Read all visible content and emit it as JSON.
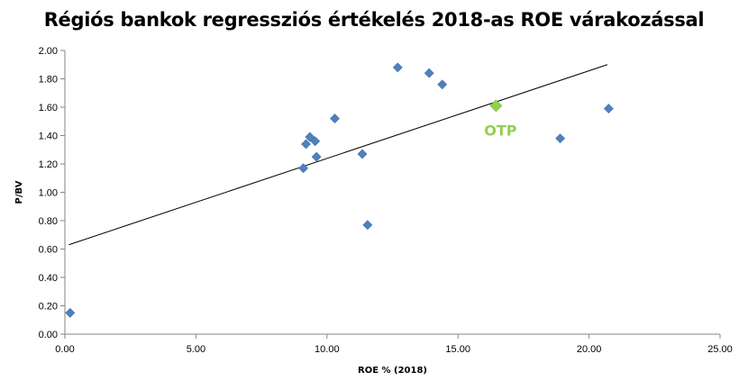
{
  "chart_data": {
    "type": "scatter",
    "title": "Régiós bankok regressziós értékelés 2018-as ROE várakozással",
    "xlabel": "ROE % (2018)",
    "ylabel": "P/BV",
    "xlim": [
      0,
      25
    ],
    "ylim": [
      0,
      2
    ],
    "x_ticks": [
      "0.00",
      "5.00",
      "10.00",
      "15.00",
      "20.00",
      "25.00"
    ],
    "y_ticks": [
      "0.00",
      "0.20",
      "0.40",
      "0.60",
      "0.80",
      "1.00",
      "1.20",
      "1.40",
      "1.60",
      "1.80",
      "2.00"
    ],
    "grid": false,
    "series": [
      {
        "color": "#4f81bd",
        "marker": "diamond",
        "points": [
          {
            "x": 0.2,
            "y": 0.15
          },
          {
            "x": 9.1,
            "y": 1.17
          },
          {
            "x": 9.2,
            "y": 1.34
          },
          {
            "x": 9.35,
            "y": 1.39
          },
          {
            "x": 9.55,
            "y": 1.36
          },
          {
            "x": 9.6,
            "y": 1.25
          },
          {
            "x": 10.3,
            "y": 1.52
          },
          {
            "x": 11.35,
            "y": 1.27
          },
          {
            "x": 11.55,
            "y": 0.77
          },
          {
            "x": 12.7,
            "y": 1.88
          },
          {
            "x": 13.9,
            "y": 1.84
          },
          {
            "x": 14.4,
            "y": 1.76
          },
          {
            "x": 18.9,
            "y": 1.38
          },
          {
            "x": 20.75,
            "y": 1.59
          }
        ]
      },
      {
        "label": "OTP",
        "color": "#92d050",
        "marker": "diamond",
        "points": [
          {
            "x": 16.45,
            "y": 1.61
          }
        ]
      }
    ],
    "trendline": {
      "type": "linear",
      "color": "#000000",
      "from": {
        "x": 0.15,
        "y": 0.63
      },
      "to": {
        "x": 20.7,
        "y": 1.9
      }
    }
  }
}
